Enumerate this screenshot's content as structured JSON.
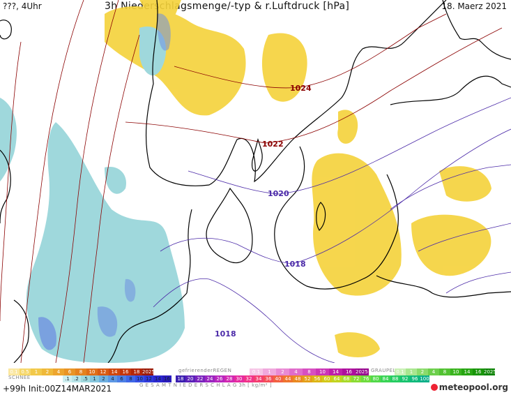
{
  "header": {
    "left_text": "???, 4Uhr",
    "title": "3h Niederschlagsmenge/-typ & r.Luftdruck [hPa]",
    "date": "18. Maerz 2021"
  },
  "isobars": [
    {
      "label": "1024",
      "color": "#8b0000"
    },
    {
      "label": "1022",
      "color": "#8b0000"
    },
    {
      "label": "1020",
      "color": "#4b2aa8"
    },
    {
      "label": "1018",
      "color": "#4b2aa8"
    },
    {
      "label": "1018",
      "color": "#4b2aa8"
    }
  ],
  "legend": {
    "rain_values": [
      "0.1",
      "0.5",
      "1",
      "2",
      "4",
      "6",
      "8",
      "10",
      "12",
      "14",
      "16",
      "18",
      "2025+"
    ],
    "freezing_caption": "gefrierenderREGEN",
    "freezing_values": [
      "0.1",
      "1",
      "2",
      "4",
      "8",
      "10",
      "14",
      "16",
      "2025+"
    ],
    "graupel_caption": "GRAUPEL",
    "graupel_values": [
      "0.1",
      "1",
      "2",
      "4",
      "8",
      "10",
      "14",
      "16",
      "2025+"
    ],
    "snow_caption": "SCHNEE",
    "snow_values": [
      ".1",
      ".2",
      ".5",
      "1",
      "2",
      "4",
      "6",
      "8",
      "10",
      "12",
      "14",
      "16"
    ],
    "total_caption": "G E S A M T N I E D E R S C H L A G   3h   [ kg/m² ]",
    "total_values": [
      "18",
      "20",
      "22",
      "24",
      "26",
      "28",
      "30",
      "32",
      "34",
      "36",
      "40",
      "44",
      "48",
      "52",
      "56",
      "60",
      "64",
      "68",
      "72",
      "76",
      "80",
      "84",
      "88",
      "92",
      "96",
      "100"
    ]
  },
  "footer": {
    "init": "+99h  Init:00Z14MAR2021",
    "logo": "meteopool.org"
  },
  "colors": {
    "rain": "#f5d23a",
    "snow": "#9fd8dc",
    "snow_dark": "#6d8fe0",
    "coast": "#000000",
    "isobar_high": "#8b0000",
    "isobar_low": "#4b2aa8"
  }
}
